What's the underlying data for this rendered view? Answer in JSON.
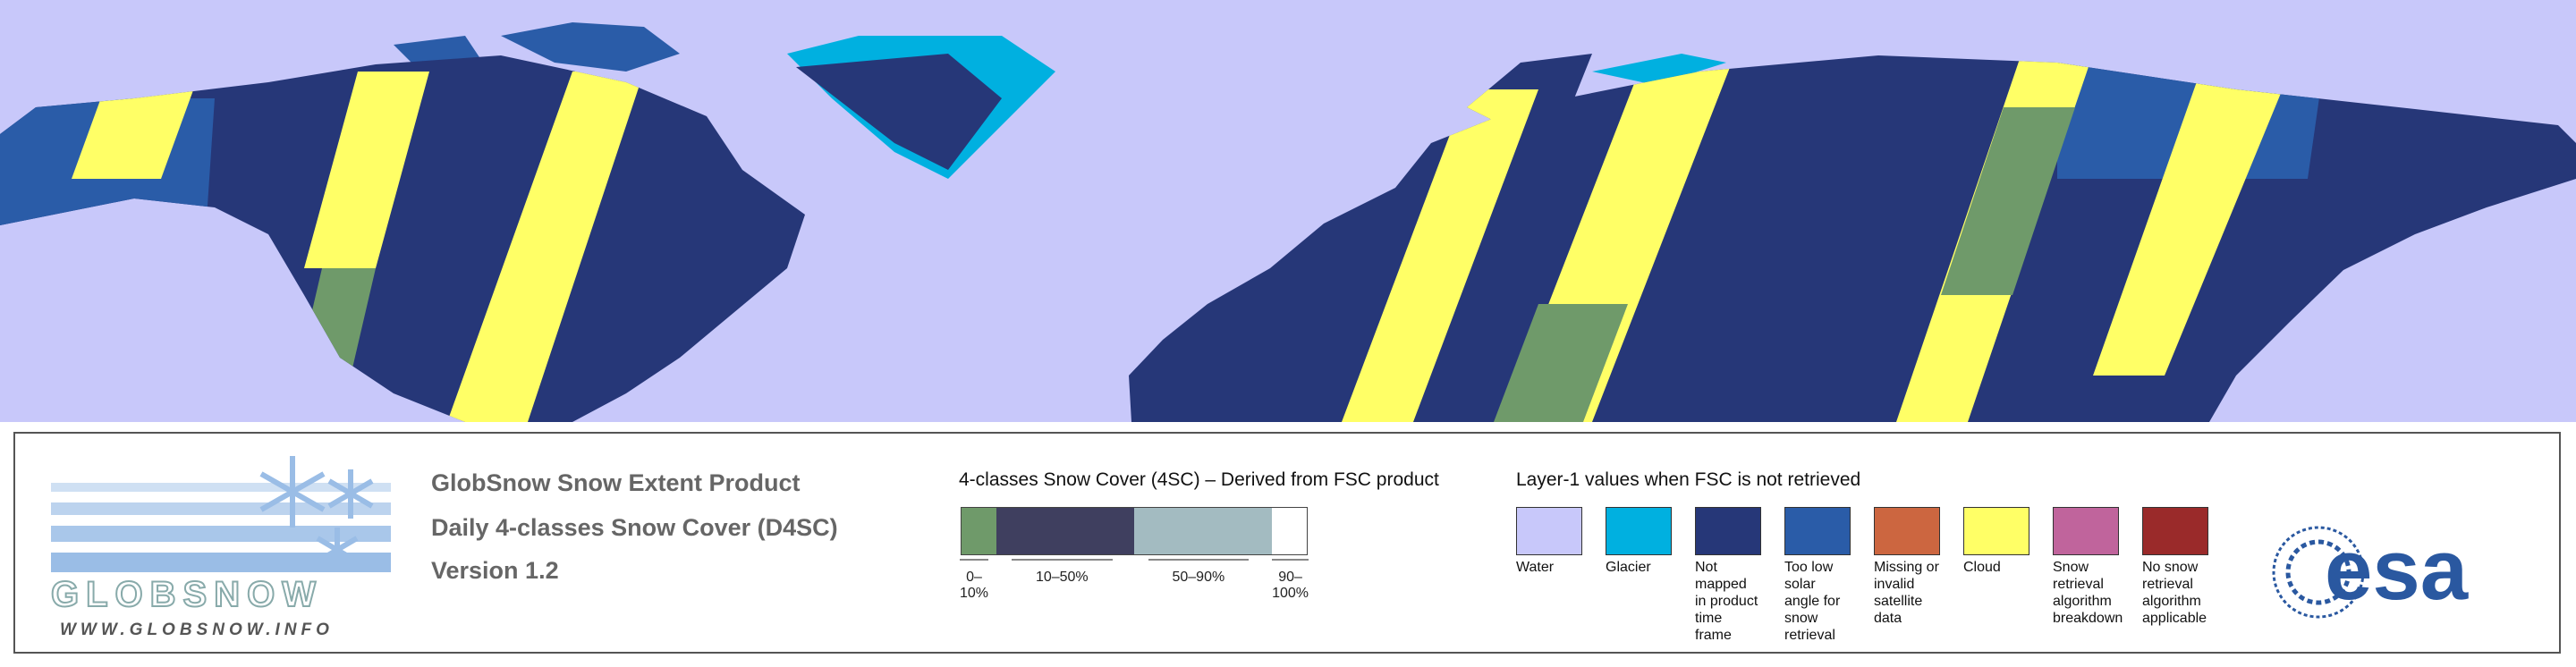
{
  "logo": {
    "brand": "GLOBSNOW",
    "url": "WWW.GLOBSNOW.INFO"
  },
  "product": {
    "lines": [
      "GlobSnow Snow Extent Product",
      "Daily 4-classes Snow Cover (D4SC)",
      "Version 1.2"
    ]
  },
  "snow_cover_legend": {
    "title": "4-classes Snow Cover (4SC) – Derived from FSC product",
    "classes": [
      {
        "label": "0–10%",
        "color": "#6f9a6a"
      },
      {
        "label": "10–50%",
        "color": "#3f3f5f"
      },
      {
        "label": "50–90%",
        "color": "#a3bbc1"
      },
      {
        "label": "90–100%",
        "color": "#ffffff"
      }
    ]
  },
  "layer1_legend": {
    "title": "Layer-1 values when FSC is not retrieved",
    "items": [
      {
        "label": "Water",
        "color": "#c8c8fa"
      },
      {
        "label": "Glacier",
        "color": "#00b0e0"
      },
      {
        "label": "Not mapped in product time frame",
        "color": "#263778"
      },
      {
        "label": "Too low solar angle for snow retrieval",
        "color": "#2a5ca8"
      },
      {
        "label": "Missing or invalid satellite data",
        "color": "#cc6640"
      },
      {
        "label": "Cloud",
        "color": "#ffff66"
      },
      {
        "label": "Snow retrieval algorithm breakdown",
        "color": "#c0649c"
      },
      {
        "label": "No snow retrieval algorithm applicable",
        "color": "#9a2a2a"
      }
    ]
  },
  "esa_logo": {
    "text": "esa"
  }
}
